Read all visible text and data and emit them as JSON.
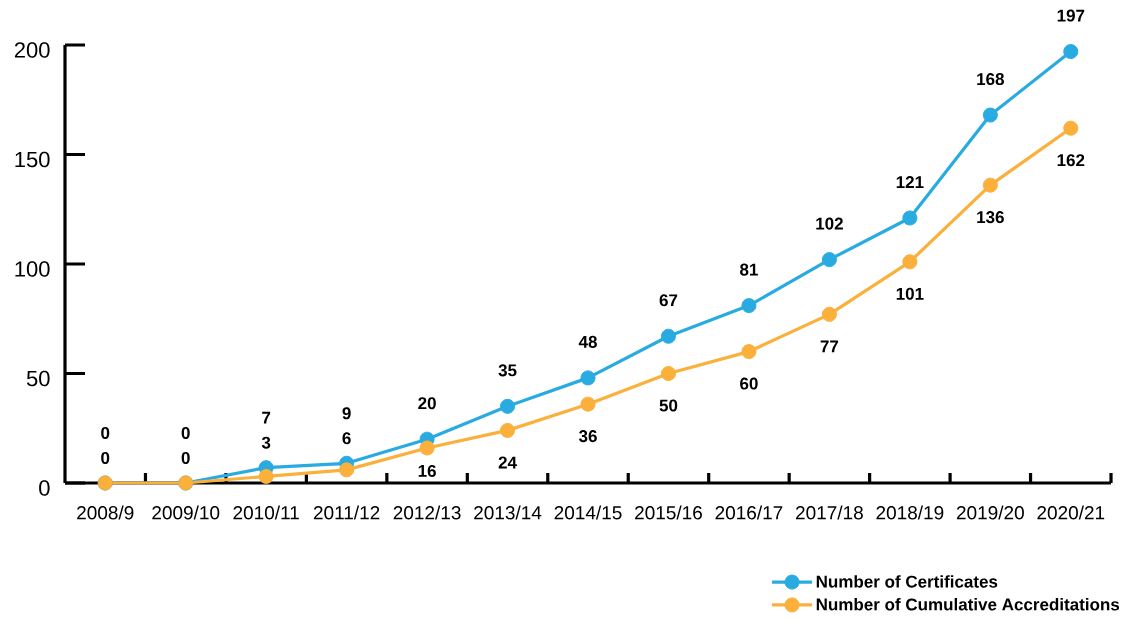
{
  "chart_data": {
    "type": "line",
    "categories": [
      "2008/9",
      "2009/10",
      "2010/11",
      "2011/12",
      "2012/13",
      "2013/14",
      "2014/15",
      "2015/16",
      "2016/17",
      "2017/18",
      "2018/19",
      "2019/20",
      "2020/21"
    ],
    "series": [
      {
        "name": "Number of Certificates",
        "color": "#29abe2",
        "values": [
          0,
          0,
          7,
          9,
          20,
          35,
          48,
          67,
          81,
          102,
          121,
          168,
          197
        ]
      },
      {
        "name": "Number of Cumulative Accreditations",
        "color": "#fbb03b",
        "values": [
          0,
          0,
          3,
          6,
          16,
          24,
          36,
          50,
          60,
          77,
          101,
          136,
          162
        ]
      }
    ],
    "ylim": [
      0,
      200
    ],
    "yticks": [
      0,
      50,
      100,
      150,
      200
    ],
    "legend": "bottom right",
    "marker": "circle",
    "line_style": "solid",
    "data_labels": true
  }
}
